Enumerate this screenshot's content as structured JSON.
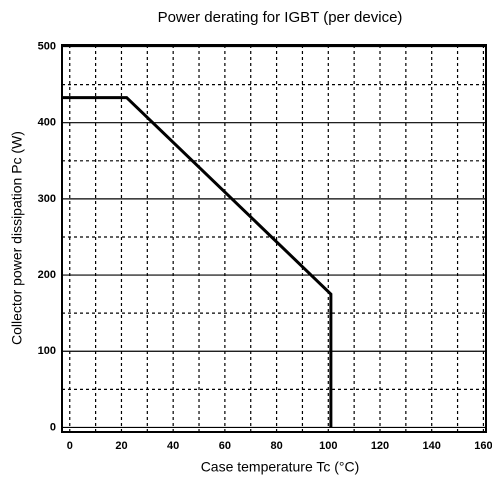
{
  "chart_data": {
    "type": "line",
    "title": "Power derating for IGBT (per device)",
    "x_label": "Case temperature  Tc (°C)",
    "y_label": "Collector power dissipation  Pc (W)",
    "series": [
      {
        "name": "Pc",
        "color": "#000000",
        "x": [
          -3,
          22,
          101,
          101
        ],
        "values": [
          433,
          433,
          175,
          0
        ]
      }
    ],
    "xlim": [
      -3,
      161
    ],
    "ylim": [
      -6,
      502
    ],
    "xticks": [
      0,
      20,
      40,
      60,
      80,
      100,
      120,
      140,
      160
    ],
    "yticks": [
      0,
      100,
      200,
      300,
      400,
      500
    ],
    "grid": true
  }
}
